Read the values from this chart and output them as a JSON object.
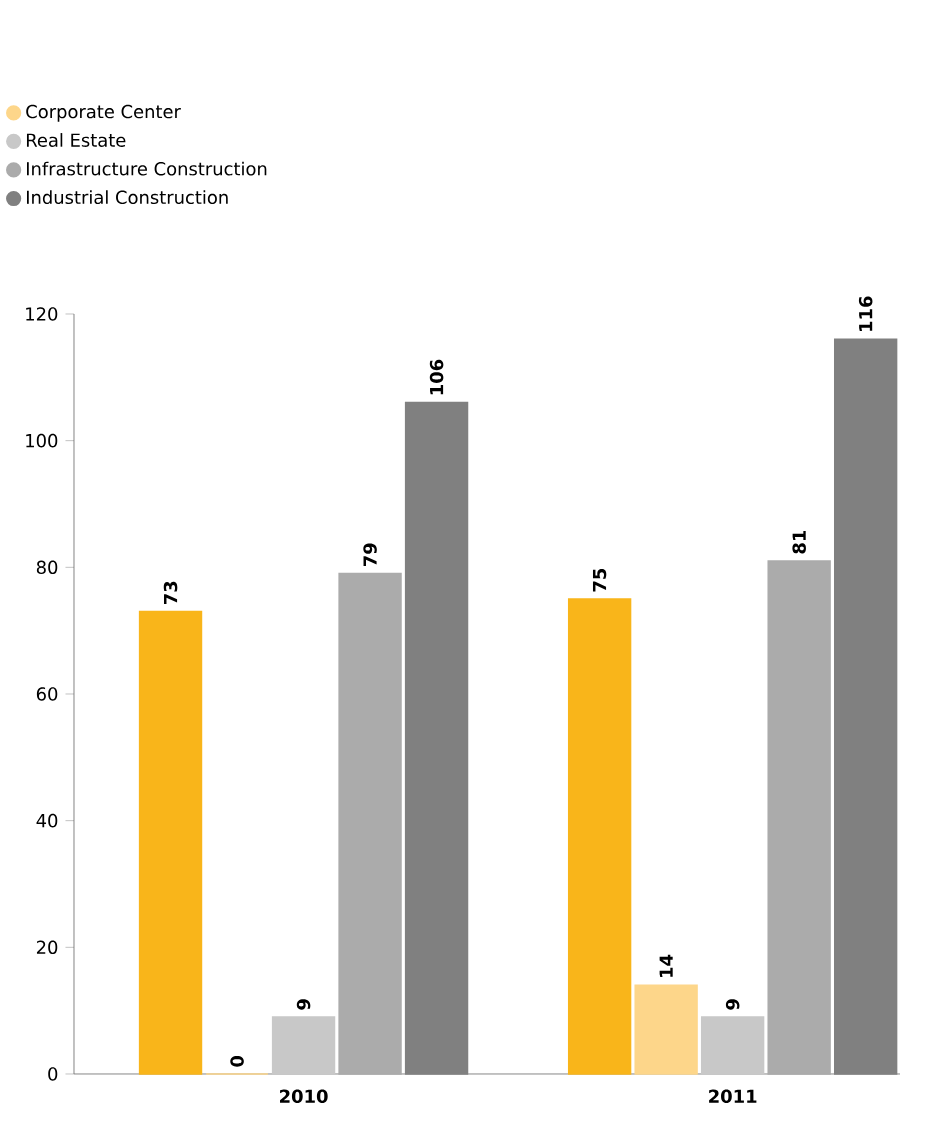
{
  "chart_data": {
    "type": "bar",
    "categories": [
      "2010",
      "2011"
    ],
    "series": [
      {
        "color": "#f9b51a",
        "values": [
          73,
          75
        ]
      },
      {
        "name": "Corporate Center",
        "color": "#fdd68a",
        "values": [
          0,
          14
        ]
      },
      {
        "name": "Real Estate",
        "color": "#c8c8c8",
        "values": [
          9,
          9
        ]
      },
      {
        "name": "Infrastructure Construction",
        "color": "#ababab",
        "values": [
          79,
          81
        ]
      },
      {
        "name": "Industrial Construction",
        "color": "#808080",
        "values": [
          106,
          116
        ]
      }
    ],
    "ylim": [
      0,
      120
    ],
    "yticks": [
      0,
      20,
      40,
      60,
      80,
      100,
      120
    ],
    "data_labels": true,
    "legend": "top left",
    "grid": false
  }
}
